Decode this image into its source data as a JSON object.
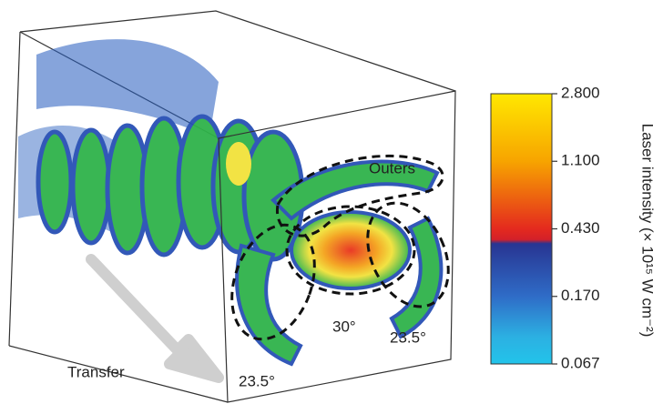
{
  "figure": {
    "labels": {
      "outers": "Outers",
      "angle_center": "30°",
      "angle_right": "23.5°",
      "angle_left": "23.5°",
      "transfer": "Transfer"
    },
    "colorbar": {
      "title": "Laser intensity (× 10¹⁵ W cm⁻²)",
      "ticks": [
        "2.800",
        "1.100",
        "0.430",
        "0.170",
        "0.067"
      ]
    }
  }
}
